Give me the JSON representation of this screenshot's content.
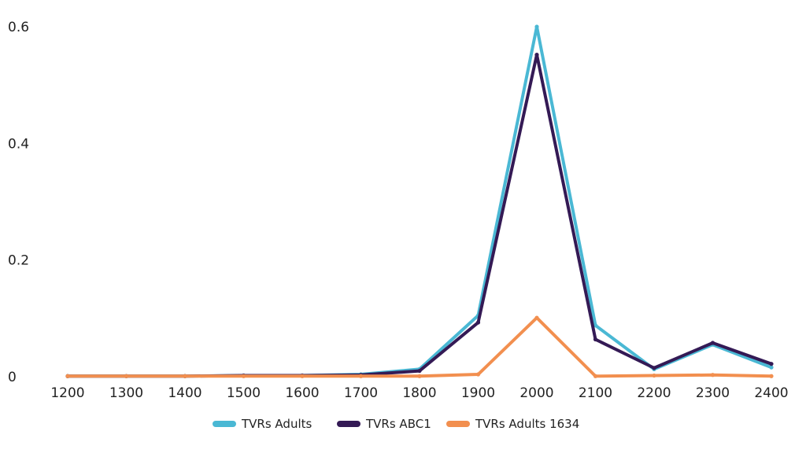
{
  "colors": {
    "tvrs_adults": "#4ab8d4",
    "tvrs_abc1": "#341a55",
    "tvrs_adults_1634": "#f28f4f",
    "text": "#222222"
  },
  "chart_data": {
    "type": "line",
    "title": "",
    "xlabel": "",
    "ylabel": "",
    "x": [
      "1200",
      "1300",
      "1400",
      "1500",
      "1600",
      "1700",
      "1800",
      "1900",
      "2000",
      "2100",
      "2200",
      "2300",
      "2400"
    ],
    "ylim": [
      0,
      0.6
    ],
    "yticks": [
      "0",
      "0.2",
      "0.4",
      "0.6"
    ],
    "grid": false,
    "legend_position": "bottom",
    "series": [
      {
        "name": "TVRs Adults",
        "color_key": "tvrs_adults",
        "values": [
          0.001,
          0.001,
          0.001,
          0.002,
          0.002,
          0.004,
          0.013,
          0.105,
          0.6,
          0.088,
          0.013,
          0.055,
          0.016
        ]
      },
      {
        "name": "TVRs ABC1",
        "color_key": "tvrs_abc1",
        "values": [
          0.001,
          0.001,
          0.001,
          0.002,
          0.002,
          0.003,
          0.01,
          0.093,
          0.552,
          0.064,
          0.015,
          0.058,
          0.022
        ]
      },
      {
        "name": "TVRs Adults 1634",
        "color_key": "tvrs_adults_1634",
        "values": [
          0.001,
          0.001,
          0.001,
          0.001,
          0.001,
          0.001,
          0.001,
          0.004,
          0.101,
          0.001,
          0.002,
          0.003,
          0.001
        ]
      }
    ]
  }
}
